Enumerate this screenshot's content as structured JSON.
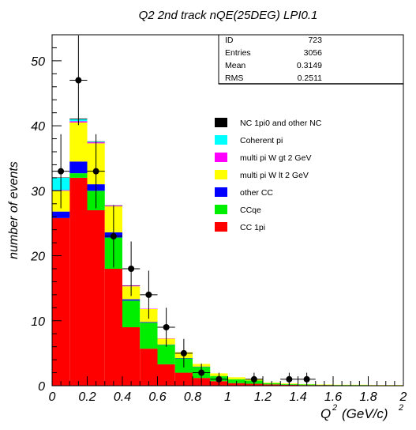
{
  "chart_data": {
    "type": "bar",
    "title": "Q2 2nd track nQE(25DEG) LPI0.1",
    "xlabel": "Q",
    "xlabel_sup": "2",
    "xlabel_unit": "(GeV/c)",
    "xlabel_unit_sup": "2",
    "ylabel": "number of events",
    "xlim": [
      0,
      2
    ],
    "ylim": [
      0,
      54
    ],
    "x_ticks": [
      "0",
      "0.2",
      "0.4",
      "0.6",
      "0.8",
      "1",
      "1.2",
      "1.4",
      "1.6",
      "1.8",
      "2"
    ],
    "y_ticks": [
      "0",
      "10",
      "20",
      "30",
      "40",
      "50"
    ],
    "bin_edges": [
      0,
      0.1,
      0.2,
      0.3,
      0.4,
      0.5,
      0.6,
      0.7,
      0.8,
      0.9,
      1.0,
      1.1,
      1.2,
      1.3,
      1.4,
      1.5,
      1.6,
      1.7,
      1.8,
      1.9,
      2.0
    ],
    "series": [
      {
        "name": "CC 1pi",
        "color": "#ff0000",
        "values": [
          25.8,
          32.0,
          27.0,
          18.0,
          9.0,
          5.7,
          3.3,
          2.0,
          1.2,
          0.7,
          0.4,
          0.3,
          0.2,
          0.15,
          0.1,
          0.1,
          0.05,
          0.05,
          0.05,
          0.05
        ]
      },
      {
        "name": "CCqe",
        "color": "#00ee00",
        "values": [
          0.0,
          0.7,
          3.0,
          4.8,
          4.1,
          4.0,
          3.0,
          2.2,
          1.7,
          0.8,
          0.6,
          0.5,
          0.2,
          0.1,
          0.1,
          0.05,
          0.05,
          0.05,
          0.0,
          0.0
        ]
      },
      {
        "name": "other CC",
        "color": "#0000ff",
        "values": [
          1.0,
          1.8,
          1.0,
          0.8,
          0.2,
          0.1,
          0.05,
          0.05,
          0.05,
          0.0,
          0.0,
          0.0,
          0.0,
          0.0,
          0.0,
          0.0,
          0.0,
          0.0,
          0.0,
          0.0
        ]
      },
      {
        "name": "multi pi W lt 2 GeV",
        "color": "#ffff00",
        "values": [
          3.2,
          6.0,
          6.3,
          4.0,
          2.0,
          2.0,
          0.9,
          0.9,
          0.4,
          0.4,
          0.3,
          0.15,
          0.1,
          0.1,
          0.05,
          0.05,
          0.05,
          0.05,
          0.05,
          0.05
        ]
      },
      {
        "name": "multi pi W gt 2 GeV",
        "color": "#ff00ff",
        "values": [
          0.1,
          0.2,
          0.15,
          0.1,
          0.1,
          0.05,
          0.05,
          0.0,
          0.0,
          0.0,
          0.0,
          0.0,
          0.0,
          0.0,
          0.0,
          0.0,
          0.0,
          0.0,
          0.0,
          0.0
        ]
      },
      {
        "name": "Coherent pi",
        "color": "#00ffff",
        "values": [
          1.9,
          0.3,
          0.1,
          0.0,
          0.0,
          0.0,
          0.0,
          0.0,
          0.0,
          0.0,
          0.0,
          0.0,
          0.0,
          0.0,
          0.0,
          0.0,
          0.0,
          0.0,
          0.0,
          0.0
        ]
      },
      {
        "name": "NC 1pi0 and other NC",
        "color": "#000000",
        "values": [
          0.05,
          0.1,
          0.05,
          0.05,
          0.05,
          0.0,
          0.0,
          0.0,
          0.0,
          0.0,
          0.0,
          0.0,
          0.0,
          0.0,
          0.0,
          0.0,
          0.0,
          0.0,
          0.0,
          0.0
        ]
      }
    ],
    "legend": [
      {
        "name": "NC 1pi0 and other NC",
        "color": "#000000"
      },
      {
        "name": "Coherent pi",
        "color": "#00ffff"
      },
      {
        "name": "multi pi W gt 2 GeV",
        "color": "#ff00ff"
      },
      {
        "name": "multi pi W lt 2 GeV",
        "color": "#ffff00"
      },
      {
        "name": "other CC",
        "color": "#0000ff"
      },
      {
        "name": "CCqe",
        "color": "#00ee00"
      },
      {
        "name": "CC 1pi",
        "color": "#ff0000"
      }
    ],
    "legend_position": "right",
    "data_points": [
      {
        "x": 0.05,
        "y": 33,
        "err": 5.7
      },
      {
        "x": 0.15,
        "y": 47,
        "err": 6.9
      },
      {
        "x": 0.25,
        "y": 33,
        "err": 5.7
      },
      {
        "x": 0.35,
        "y": 23,
        "err": 4.8
      },
      {
        "x": 0.45,
        "y": 18,
        "err": 4.2
      },
      {
        "x": 0.55,
        "y": 14,
        "err": 3.7
      },
      {
        "x": 0.65,
        "y": 9,
        "err": 3.0
      },
      {
        "x": 0.75,
        "y": 5,
        "err": 2.2
      },
      {
        "x": 0.85,
        "y": 2,
        "err": 1.4
      },
      {
        "x": 0.95,
        "y": 1,
        "err": 1.0
      },
      {
        "x": 1.15,
        "y": 1,
        "err": 1.0
      },
      {
        "x": 1.35,
        "y": 1,
        "err": 1.0
      },
      {
        "x": 1.45,
        "y": 1,
        "err": 1.0
      }
    ],
    "grid": false
  },
  "stats": [
    {
      "label": "ID",
      "value": "723"
    },
    {
      "label": "Entries",
      "value": "3056"
    },
    {
      "label": "Mean",
      "value": "0.3149"
    },
    {
      "label": "RMS",
      "value": "0.2511"
    }
  ]
}
